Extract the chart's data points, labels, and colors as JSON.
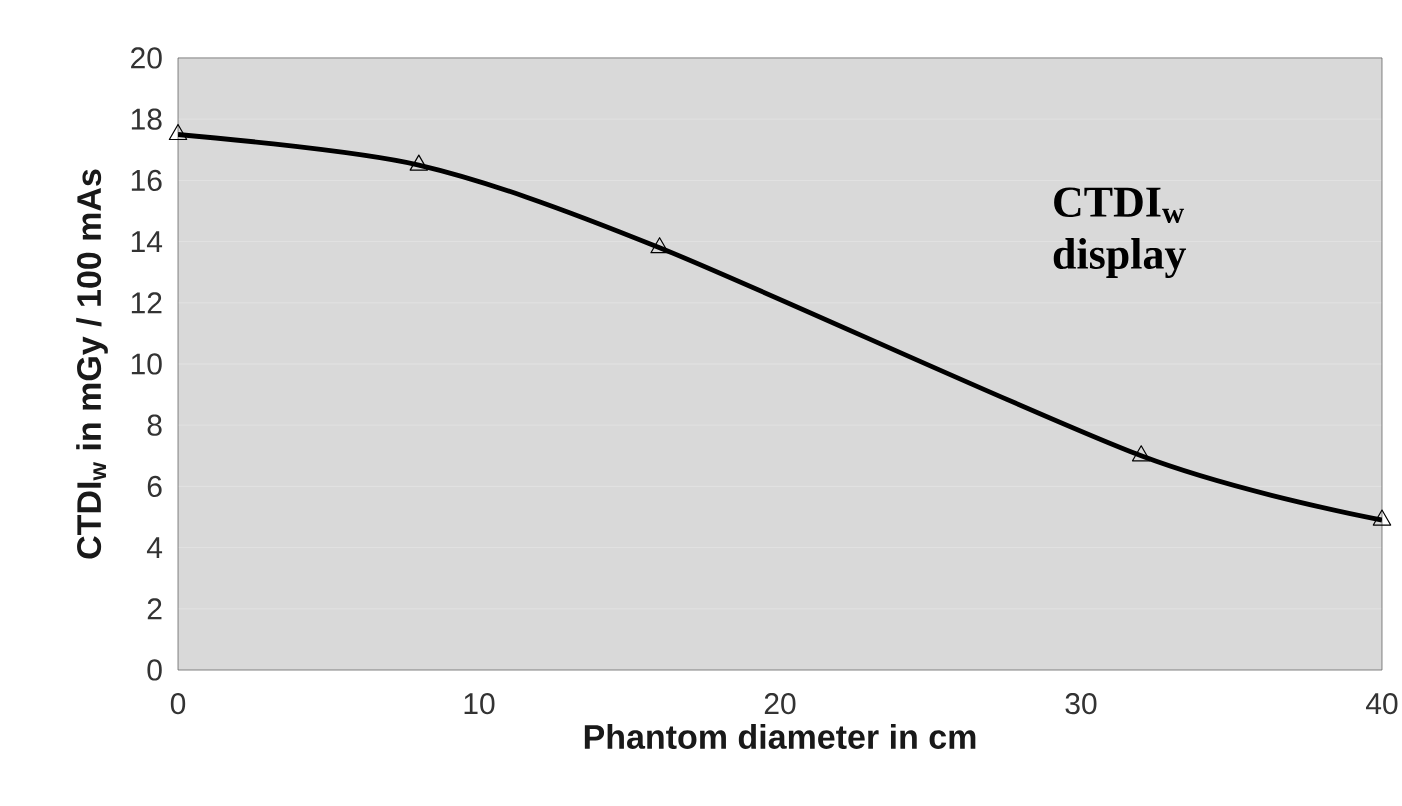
{
  "chart_data": {
    "type": "line",
    "xlabel": "Phantom diameter in cm",
    "ylabel": "CTDI$_{w}$ in mGy / 100 mAs",
    "x": [
      0,
      8,
      16,
      32,
      40
    ],
    "series": [
      {
        "color": "#000000",
        "values": [
          17.5,
          16.5,
          13.8,
          7.0,
          4.9
        ]
      }
    ],
    "xlim": [
      0,
      40
    ],
    "xticks": [
      0,
      10,
      20,
      30,
      40
    ],
    "ylim": [
      0,
      20
    ],
    "yticks": [
      0,
      2,
      4,
      6,
      8,
      10,
      12,
      14,
      16,
      18,
      20
    ],
    "grid": "y",
    "marker": "triangle",
    "line_style": "solid",
    "annotations": [
      "CTDI$_{w}$ display"
    ]
  }
}
